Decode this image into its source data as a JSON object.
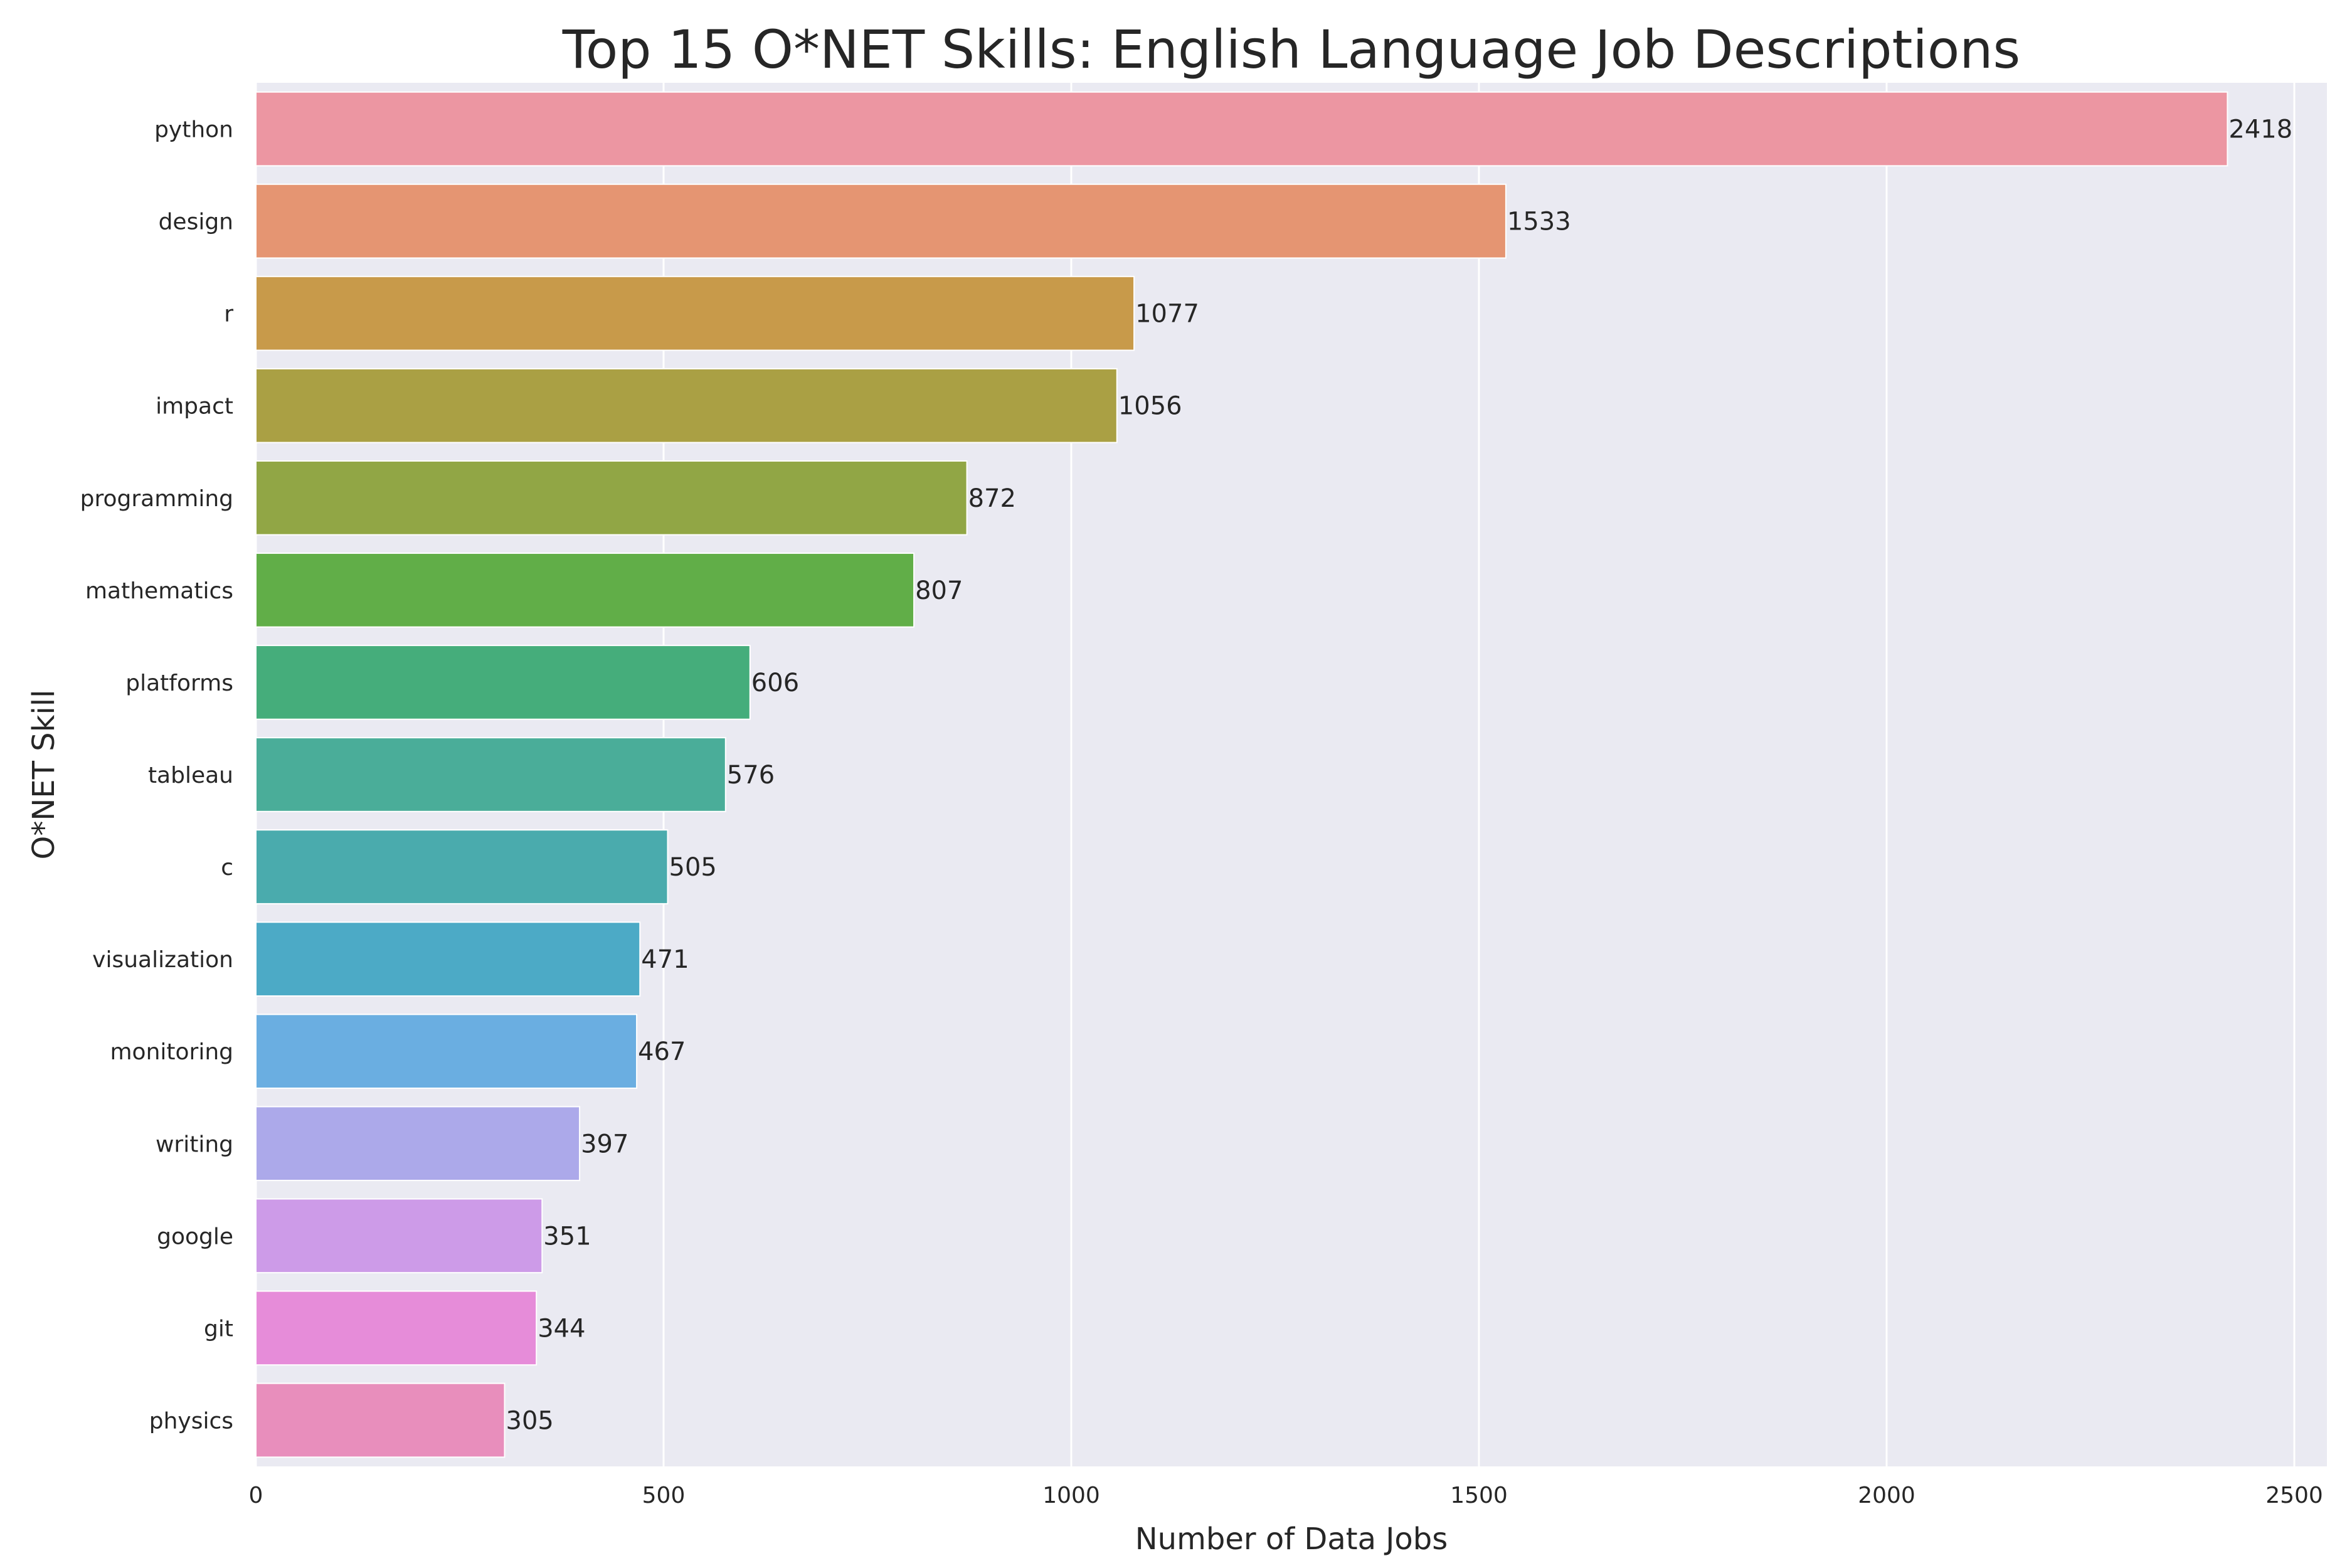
{
  "chart_data": {
    "type": "bar",
    "orientation": "horizontal",
    "title": "Top 15 O*NET Skills: English Language Job Descriptions",
    "xlabel": "Number of Data Jobs",
    "ylabel": "O*NET Skill",
    "xlim": [
      0,
      2540
    ],
    "x_ticks": [
      "0",
      "500",
      "1000",
      "1500",
      "2000",
      "2500"
    ],
    "grid": true,
    "legend": "none",
    "categories": [
      "python",
      "design",
      "r",
      "impact",
      "programming",
      "mathematics",
      "platforms",
      "tableau",
      "c",
      "visualization",
      "monitoring",
      "writing",
      "google",
      "git",
      "physics"
    ],
    "values": [
      2418,
      1533,
      1077,
      1056,
      872,
      807,
      606,
      576,
      505,
      471,
      467,
      397,
      351,
      344,
      305
    ],
    "value_labels": [
      "2418",
      "1533",
      "1077",
      "1056",
      "872",
      "807",
      "606",
      "576",
      "505",
      "471",
      "467",
      "397",
      "351",
      "344",
      "305"
    ],
    "colors": [
      "#ec96a2",
      "#e59572",
      "#c89a4a",
      "#aaa044",
      "#91a645",
      "#61ae48",
      "#45ad7b",
      "#4aad99",
      "#4aabad",
      "#4caac6",
      "#6aaee1",
      "#aca9ea",
      "#cd9be8",
      "#e68cd9",
      "#e88ebc"
    ],
    "plot_background": "#eaeaf2"
  }
}
